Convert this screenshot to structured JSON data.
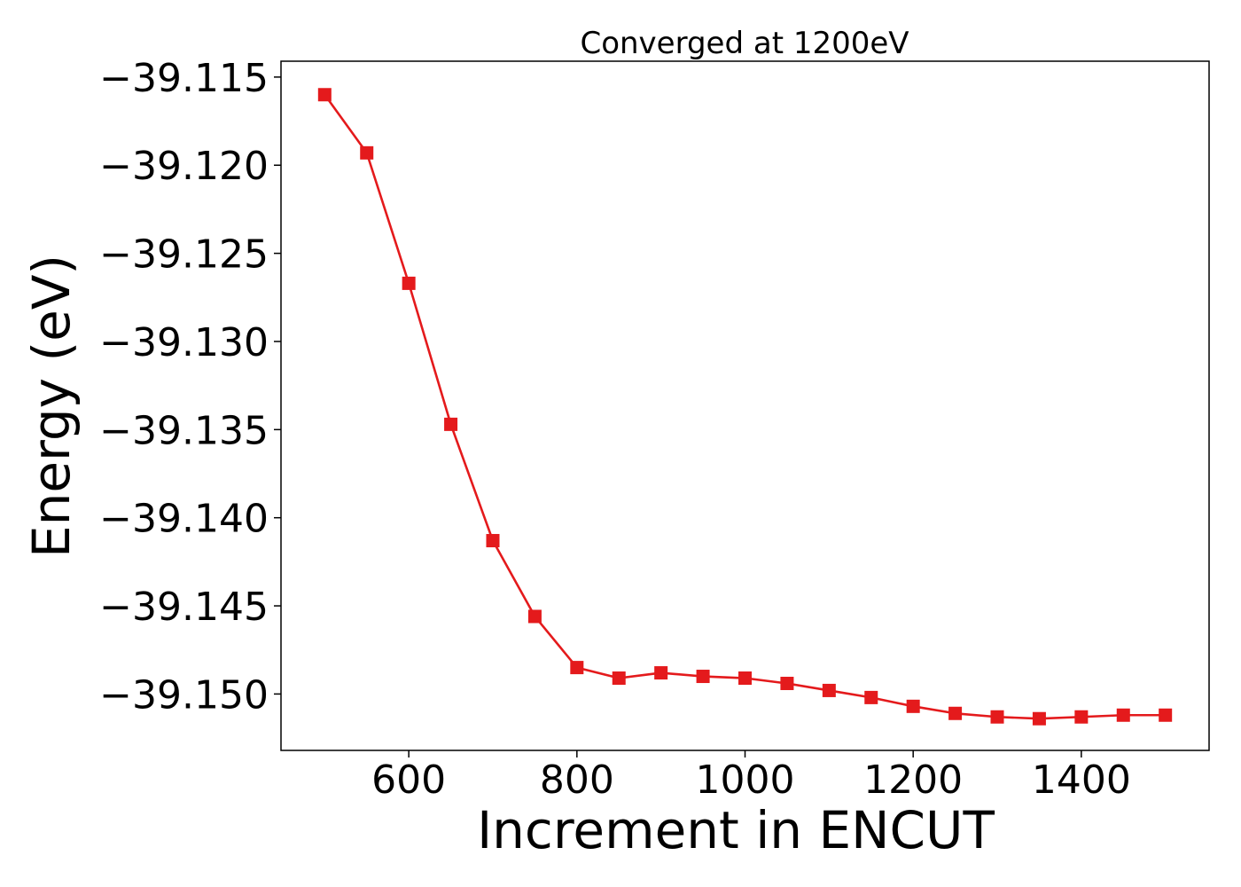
{
  "chart_data": {
    "type": "line",
    "title": "Converged at 1200eV",
    "xlabel": "Increment in ENCUT",
    "ylabel": "Energy (eV)",
    "xlim": [
      448,
      1552
    ],
    "ylim": [
      -39.1532,
      -39.1141
    ],
    "x_ticks": [
      600,
      800,
      1000,
      1200,
      1400
    ],
    "x_tick_labels": [
      "600",
      "800",
      "1000",
      "1200",
      "1400"
    ],
    "y_ticks": [
      -39.115,
      -39.12,
      -39.125,
      -39.13,
      -39.135,
      -39.14,
      -39.145,
      -39.15
    ],
    "y_tick_labels": [
      "−39.115",
      "−39.120",
      "−39.125",
      "−39.130",
      "−39.135",
      "−39.140",
      "−39.145",
      "−39.150"
    ],
    "grid": false,
    "series": [
      {
        "color": "#e41a1c",
        "marker": "square",
        "x": [
          500,
          550,
          600,
          650,
          700,
          750,
          800,
          850,
          900,
          950,
          1000,
          1050,
          1100,
          1150,
          1200,
          1250,
          1300,
          1350,
          1400,
          1450,
          1500
        ],
        "y": [
          -39.116,
          -39.1193,
          -39.1267,
          -39.1347,
          -39.1413,
          -39.1456,
          -39.1485,
          -39.1491,
          -39.1488,
          -39.149,
          -39.1491,
          -39.1494,
          -39.1498,
          -39.1502,
          -39.1507,
          -39.1511,
          -39.1513,
          -39.1514,
          -39.1513,
          -39.1512,
          -39.1512
        ]
      }
    ]
  }
}
